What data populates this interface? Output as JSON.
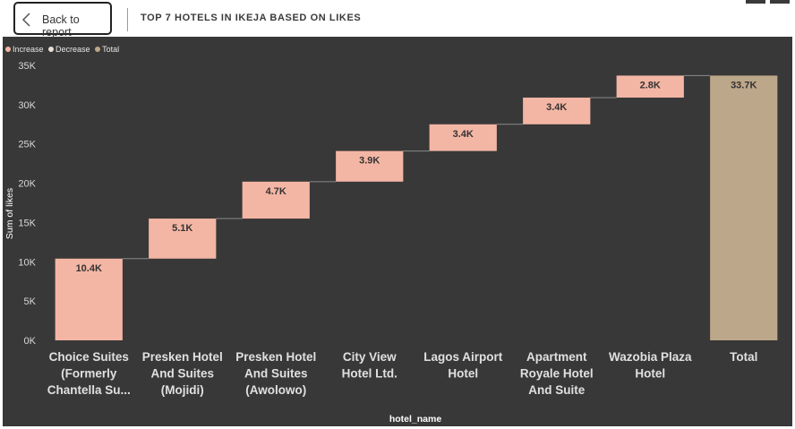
{
  "header": {
    "back_label": "Back to report",
    "title": "TOP 7 HOTELS IN IKEJA BASED ON LIKES"
  },
  "legend": [
    {
      "label": "Increase",
      "color": "#f4b6a4"
    },
    {
      "label": "Decrease",
      "color": "#e8e1d8"
    },
    {
      "label": "Total",
      "color": "#bda78a"
    }
  ],
  "chart_data": {
    "type": "bar",
    "subtype": "waterfall",
    "title": "TOP 7 HOTELS IN IKEJA BASED ON LIKES",
    "xlabel": "hotel_name",
    "ylabel": "Sum of likes",
    "ylim": [
      0,
      35000
    ],
    "yticks": [
      0,
      5000,
      10000,
      15000,
      20000,
      25000,
      30000,
      35000
    ],
    "ytick_labels": [
      "0K",
      "5K",
      "10K",
      "15K",
      "20K",
      "25K",
      "30K",
      "35K"
    ],
    "grid": false,
    "legend_position": "top-left",
    "categories": [
      [
        "Choice Suites",
        "(Formerly",
        "Chantella Su..."
      ],
      [
        "Presken Hotel",
        "And Suites",
        "(Mojidi)"
      ],
      [
        "Presken Hotel",
        "And Suites",
        "(Awolowo)"
      ],
      [
        "City View",
        "Hotel Ltd."
      ],
      [
        "Lagos Airport",
        "Hotel"
      ],
      [
        "Apartment",
        "Royale Hotel",
        "And Suite"
      ],
      [
        "Wazobia Plaza",
        "Hotel"
      ],
      [
        "Total"
      ]
    ],
    "values": [
      10400,
      5100,
      4700,
      3900,
      3400,
      3400,
      2800,
      33700
    ],
    "data_labels": [
      "10.4K",
      "5.1K",
      "4.7K",
      "3.9K",
      "3.4K",
      "3.4K",
      "2.8K",
      "33.7K"
    ],
    "bar_kinds": [
      "increase",
      "increase",
      "increase",
      "increase",
      "increase",
      "increase",
      "increase",
      "total"
    ],
    "colors": {
      "increase": "#f4b6a4",
      "total": "#bda78a",
      "connector": "#8a8a8a"
    }
  }
}
